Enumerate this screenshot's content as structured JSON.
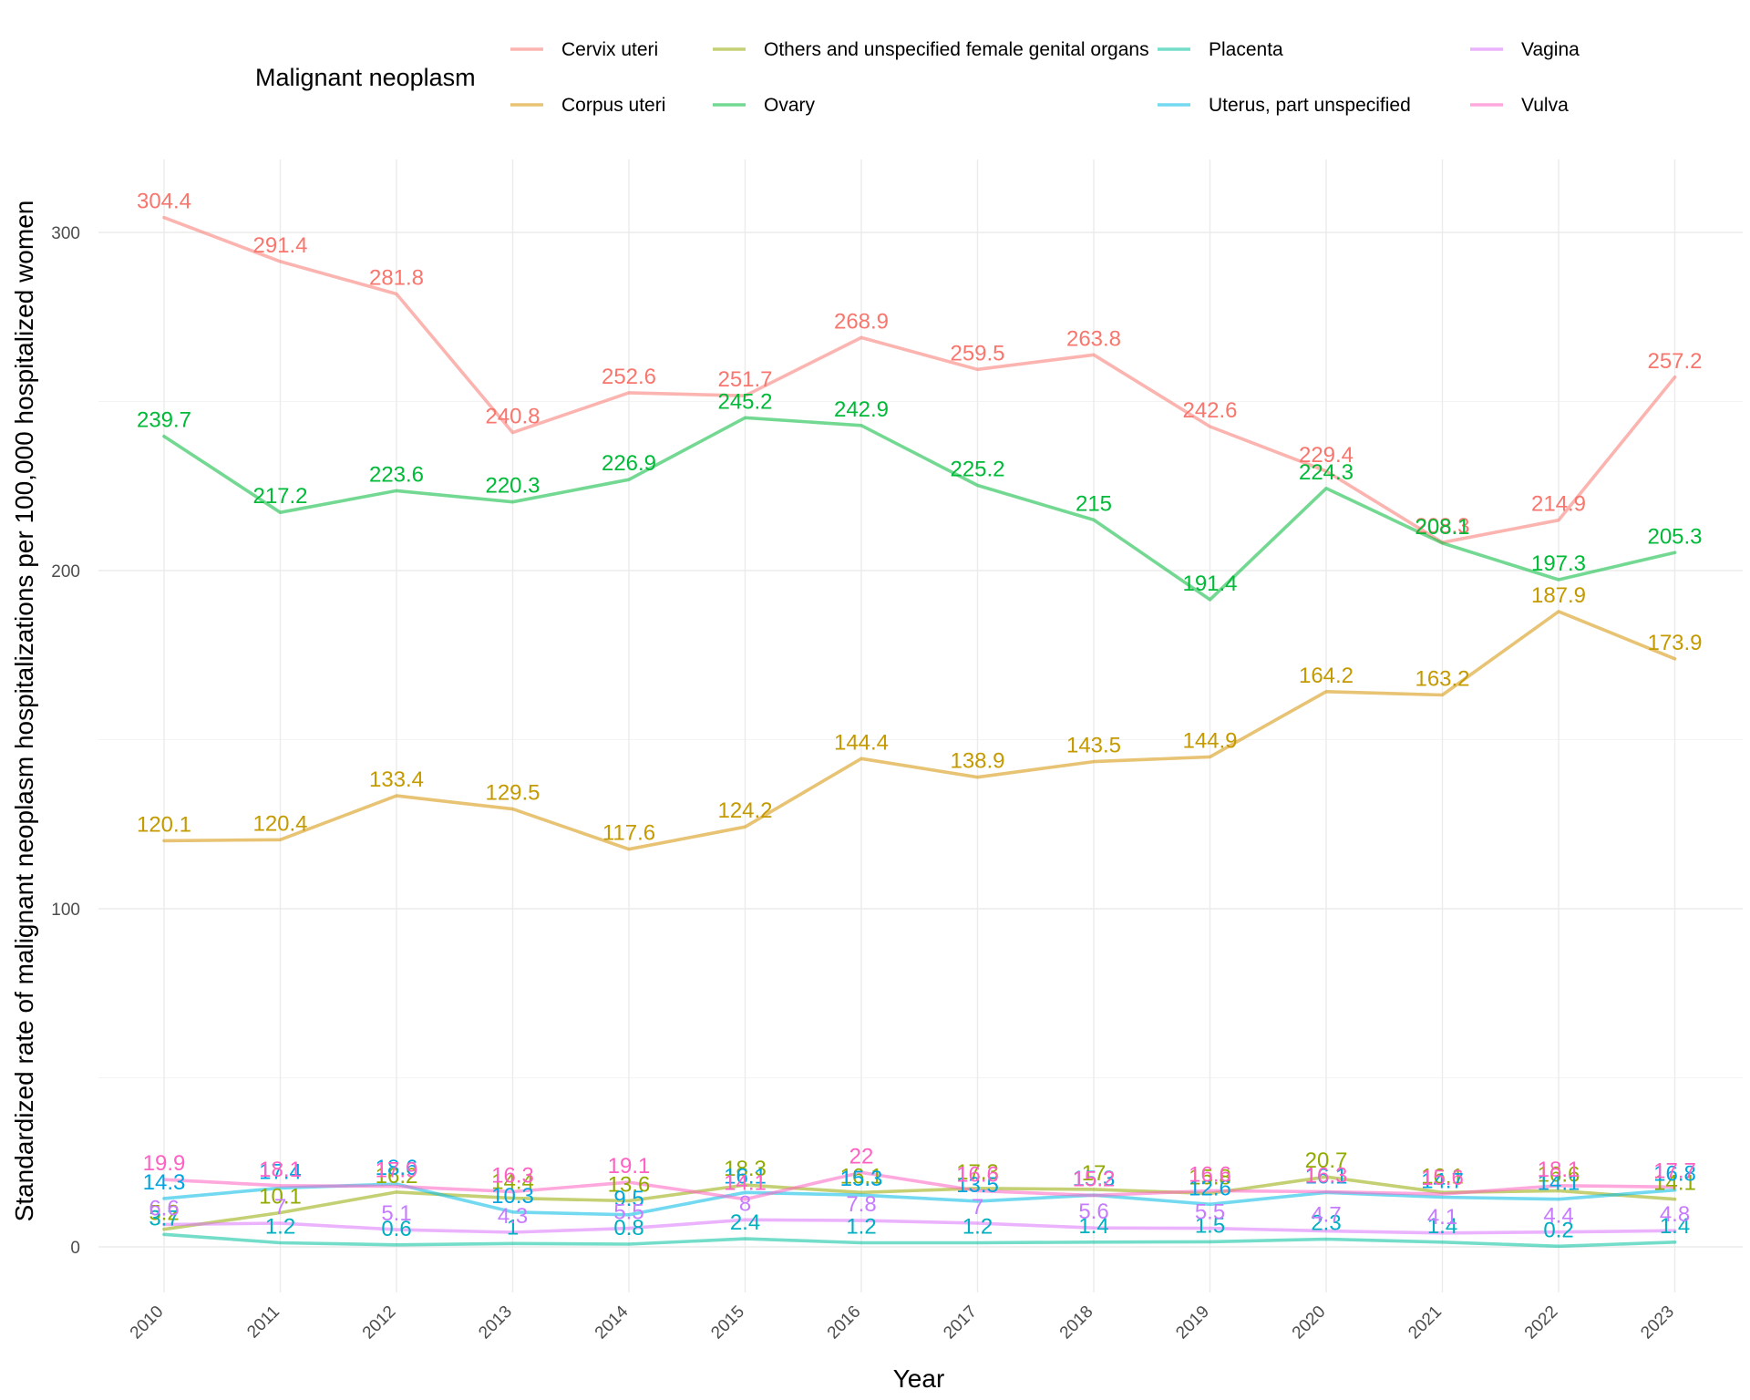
{
  "chart_data": {
    "type": "line",
    "x": [
      "2010",
      "2011",
      "2012",
      "2013",
      "2014",
      "2015",
      "2016",
      "2017",
      "2018",
      "2019",
      "2020",
      "2021",
      "2022",
      "2023"
    ],
    "xlabel": "Year",
    "ylabel": "Standardized rate of malignant neoplasm hospitalizations per 100,000 hospitalized women",
    "ylim": [
      -13,
      320
    ],
    "yticks": [
      0,
      100,
      200,
      300
    ],
    "grid": true,
    "legend": {
      "title": "Malignant neoplasm",
      "position": "top"
    },
    "series": [
      {
        "name": "Cervix uteri",
        "color": "#F8766D",
        "labelColor": "#F8766D",
        "values": [
          304.4,
          291.4,
          281.8,
          240.8,
          252.6,
          251.7,
          268.9,
          259.5,
          263.8,
          242.6,
          229.4,
          208.3,
          214.9,
          257.2
        ]
      },
      {
        "name": "Corpus uteri",
        "color": "#D39200",
        "labelColor": "#C49A00",
        "values": [
          120.1,
          120.4,
          133.4,
          129.5,
          117.6,
          124.2,
          144.4,
          138.9,
          143.5,
          144.9,
          164.2,
          163.2,
          187.9,
          173.9
        ]
      },
      {
        "name": "Others and unspecified female genital organs",
        "color": "#93AA00",
        "labelColor": "#93AA00",
        "values": [
          5.2,
          10.1,
          16.2,
          14.4,
          13.6,
          18.3,
          16.1,
          17.3,
          17,
          15.8,
          20.7,
          16.1,
          16.6,
          14.1
        ]
      },
      {
        "name": "Ovary",
        "color": "#00BA38",
        "labelColor": "#00BA38",
        "values": [
          239.7,
          217.2,
          223.6,
          220.3,
          226.9,
          245.2,
          242.9,
          225.2,
          215,
          191.4,
          224.3,
          208.1,
          197.3,
          205.3
        ]
      },
      {
        "name": "Placenta",
        "color": "#00C19F",
        "labelColor": "#00B0C0",
        "values": [
          3.7,
          1.2,
          0.6,
          1,
          0.8,
          2.4,
          1.2,
          1.2,
          1.4,
          1.5,
          2.3,
          1.4,
          0.2,
          1.4
        ]
      },
      {
        "name": "Uterus, part unspecified",
        "color": "#00B9E3",
        "labelColor": "#00A5E0",
        "values": [
          14.3,
          17.4,
          18.6,
          10.3,
          9.5,
          16.1,
          15.3,
          13.5,
          15.3,
          12.6,
          16.1,
          14.7,
          14.1,
          16.8
        ]
      },
      {
        "name": "Vagina",
        "color": "#DB72FB",
        "labelColor": "#C77CFF",
        "values": [
          6.6,
          7,
          5.1,
          4.3,
          5.5,
          8,
          7.8,
          7,
          5.6,
          5.5,
          4.7,
          4.1,
          4.4,
          4.8
        ]
      },
      {
        "name": "Vulva",
        "color": "#FF61C3",
        "labelColor": "#FF61C3",
        "values": [
          19.9,
          18.1,
          17.9,
          16.3,
          19.1,
          14.1,
          22,
          16.6,
          15.2,
          16.6,
          16.3,
          15.6,
          18.1,
          17.7
        ]
      }
    ]
  }
}
